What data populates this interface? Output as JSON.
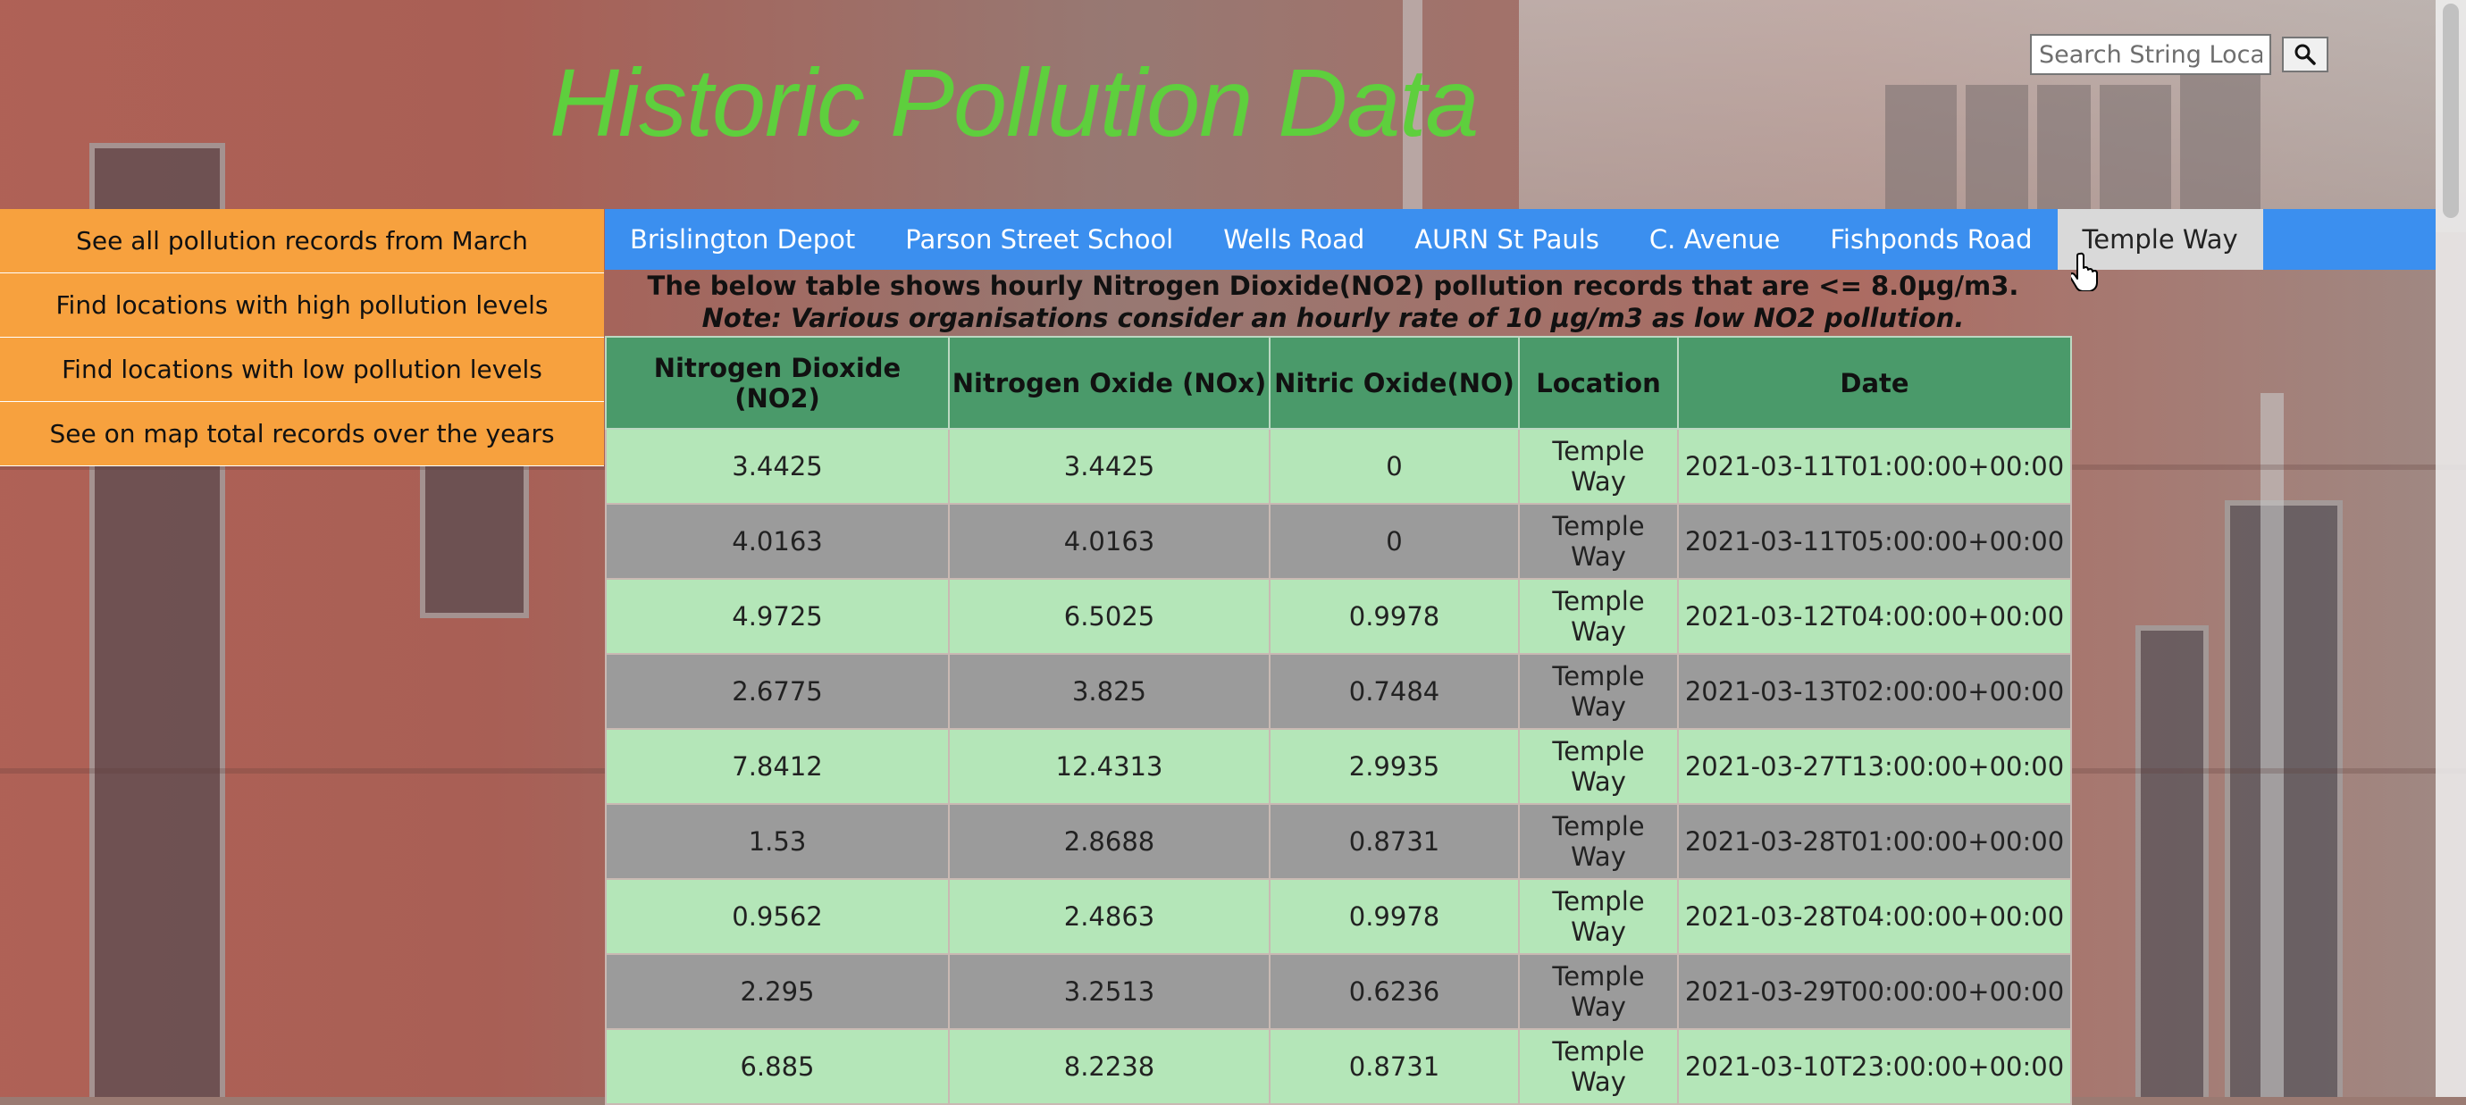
{
  "header": {
    "title": "Historic Pollution Data"
  },
  "search": {
    "placeholder": "Search String Location",
    "button_icon": "search-icon"
  },
  "sidebar": {
    "items": [
      {
        "label": "See all pollution records from March"
      },
      {
        "label": "Find locations with high pollution levels"
      },
      {
        "label": "Find locations with low pollution levels"
      },
      {
        "label": "See on map total records over the years"
      }
    ]
  },
  "nav": {
    "tabs": [
      {
        "label": "Brislington Depot"
      },
      {
        "label": "Parson Street School"
      },
      {
        "label": "Wells Road"
      },
      {
        "label": "AURN St Pauls"
      },
      {
        "label": "C. Avenue"
      },
      {
        "label": "Fishponds Road"
      },
      {
        "label": "Temple Way"
      }
    ],
    "active": "Temple Way"
  },
  "description": {
    "text": "The below table shows hourly Nitrogen Dioxide(NO2) pollution records that are <= 8.0µg/m3.",
    "note": "Note: Various organisations consider an hourly rate of 10 µg/m3 as low NO2 pollution."
  },
  "table": {
    "headers": [
      "Nitrogen Dioxide (NO2)",
      "Nitrogen Oxide (NOx)",
      "Nitric Oxide(NO)",
      "Location",
      "Date"
    ],
    "rows": [
      [
        "3.4425",
        "3.4425",
        "0",
        "Temple Way",
        "2021-03-11T01:00:00+00:00"
      ],
      [
        "4.0163",
        "4.0163",
        "0",
        "Temple Way",
        "2021-03-11T05:00:00+00:00"
      ],
      [
        "4.9725",
        "6.5025",
        "0.9978",
        "Temple Way",
        "2021-03-12T04:00:00+00:00"
      ],
      [
        "2.6775",
        "3.825",
        "0.7484",
        "Temple Way",
        "2021-03-13T02:00:00+00:00"
      ],
      [
        "7.8412",
        "12.4313",
        "2.9935",
        "Temple Way",
        "2021-03-27T13:00:00+00:00"
      ],
      [
        "1.53",
        "2.8688",
        "0.8731",
        "Temple Way",
        "2021-03-28T01:00:00+00:00"
      ],
      [
        "0.9562",
        "2.4863",
        "0.9978",
        "Temple Way",
        "2021-03-28T04:00:00+00:00"
      ],
      [
        "2.295",
        "3.2513",
        "0.6236",
        "Temple Way",
        "2021-03-29T00:00:00+00:00"
      ],
      [
        "6.885",
        "8.2238",
        "0.8731",
        "Temple Way",
        "2021-03-10T23:00:00+00:00"
      ]
    ]
  },
  "colors": {
    "title": "#5ecf3d",
    "sidebar": "#f7a13e",
    "nav": "#3b8fef",
    "header_row": "#4a9a6a",
    "row_light": "#b4e6b8",
    "row_dark": "#9b9b9b"
  }
}
